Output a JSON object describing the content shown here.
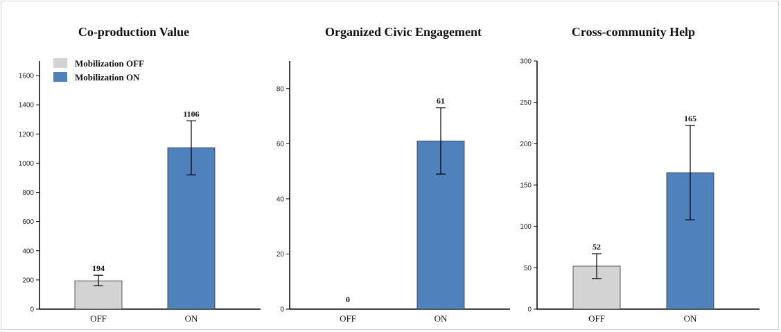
{
  "colors": {
    "off": "#d3d3d3",
    "on": "#4f81bd",
    "axis": "#000000",
    "bar_stroke": "#333333"
  },
  "legend": {
    "off_label": "Mobilization OFF",
    "on_label": "Mobilization ON",
    "placement": "top-left of first panel"
  },
  "chart_data": [
    {
      "type": "bar",
      "title": "Co-production Value",
      "categories": [
        "OFF",
        "ON"
      ],
      "values": [
        194,
        1106
      ],
      "error_low": [
        160,
        920
      ],
      "error_high": [
        232,
        1290
      ],
      "data_labels": [
        "194",
        "1106"
      ],
      "ylim": [
        0,
        1700
      ],
      "yticks": [
        0,
        200,
        400,
        600,
        800,
        1000,
        1200,
        1400,
        1600
      ],
      "grid": false
    },
    {
      "type": "bar",
      "title": "Organized Civic Engagement",
      "categories": [
        "OFF",
        "ON"
      ],
      "values": [
        0,
        61
      ],
      "error_low": [
        0,
        49
      ],
      "error_high": [
        0,
        73
      ],
      "data_labels": [
        "0",
        "61"
      ],
      "ylim": [
        0,
        90
      ],
      "yticks": [
        0,
        20,
        40,
        60,
        80
      ],
      "grid": false
    },
    {
      "type": "bar",
      "title": "Cross-community Help",
      "categories": [
        "OFF",
        "ON"
      ],
      "values": [
        52,
        165
      ],
      "error_low": [
        37,
        108
      ],
      "error_high": [
        67,
        222
      ],
      "data_labels": [
        "52",
        "165"
      ],
      "ylim": [
        0,
        300
      ],
      "yticks": [
        0,
        50,
        100,
        150,
        200,
        250,
        300
      ],
      "grid": false
    }
  ]
}
